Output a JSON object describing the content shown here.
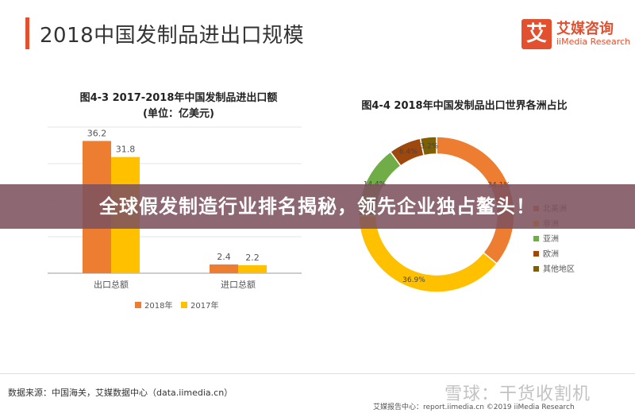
{
  "header": {
    "title": "2018中国发制品进出口规模",
    "logo_mark": "艾",
    "logo_cn": "艾媒咨询",
    "logo_en": "iiMedia Research"
  },
  "banner": {
    "text": "全球假发制造行业排名揭秘，领先企业独占鳌头！"
  },
  "footer": {
    "source": "数据来源：中国海关，艾媒数据中心（data.iimedia.cn）",
    "copyright": "艾媒报告中心：report.iimedia.cn   ©2019  iiMedia Research",
    "watermark": "雪球：干货收割机"
  },
  "colors": {
    "accent": "#e2502f",
    "orange": "#ed7d31",
    "yellow": "#ffc000",
    "green": "#70ad47",
    "brown": "#9e480e",
    "olive": "#7f6000"
  },
  "chart_data": [
    {
      "type": "bar",
      "title": "图4-3 2017-2018年中国发制品进出口额",
      "subtitle": "(单位：亿美元)",
      "categories": [
        "出口总额",
        "进口总额"
      ],
      "series": [
        {
          "name": "2018年",
          "values": [
            36.2,
            2.4
          ],
          "labels": [
            "36.2",
            "2.4"
          ]
        },
        {
          "name": "2017年",
          "values": [
            31.8,
            2.2
          ],
          "labels": [
            "31.8",
            "2.2"
          ]
        }
      ],
      "ylim": [
        0,
        40
      ],
      "grid": true,
      "legend": "bottom"
    },
    {
      "type": "pie",
      "donut": true,
      "title": "图4-4 2018年中国发制品出口世界各洲占比",
      "slices": [
        {
          "name": "北美洲",
          "value": 34.1,
          "label": "34.1%"
        },
        {
          "name": "非洲",
          "value": 36.9,
          "label": "36.9%"
        },
        {
          "name": "亚洲",
          "value": 14.4,
          "label": "14.4%"
        },
        {
          "name": "欧洲",
          "value": 6.4,
          "label": "6.4%"
        },
        {
          "name": "其他地区",
          "value": 3.2,
          "label": "3.2%"
        }
      ],
      "legend": "right"
    }
  ]
}
